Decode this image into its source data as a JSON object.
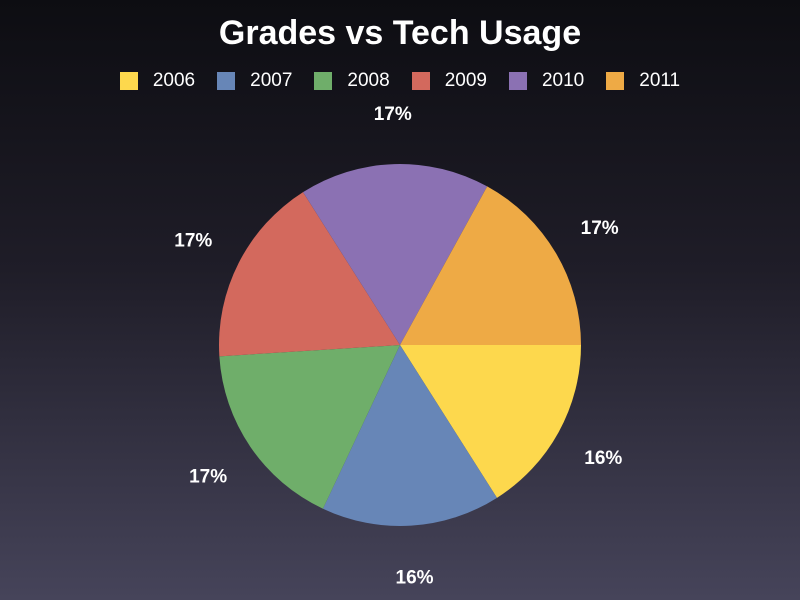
{
  "chart_data": {
    "type": "pie",
    "title": "Grades vs Tech Usage",
    "legend_position": "top",
    "slices": [
      {
        "name": "2006",
        "percent": 16,
        "label": "16%",
        "color": "#fdd84d"
      },
      {
        "name": "2007",
        "percent": 16,
        "label": "16%",
        "color": "#6786b7"
      },
      {
        "name": "2008",
        "percent": 17,
        "label": "17%",
        "color": "#6fae6a"
      },
      {
        "name": "2009",
        "percent": 17,
        "label": "17%",
        "color": "#d3695d"
      },
      {
        "name": "2010",
        "percent": 17,
        "label": "17%",
        "color": "#8b71b3"
      },
      {
        "name": "2011",
        "percent": 17,
        "label": "17%",
        "color": "#eeaa45"
      }
    ]
  }
}
